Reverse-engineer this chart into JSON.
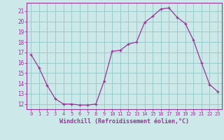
{
  "x": [
    0,
    1,
    2,
    3,
    4,
    5,
    6,
    7,
    8,
    9,
    10,
    11,
    12,
    13,
    14,
    15,
    16,
    17,
    18,
    19,
    20,
    21,
    22,
    23
  ],
  "y": [
    16.8,
    15.5,
    13.8,
    12.5,
    12.0,
    12.0,
    11.9,
    11.9,
    12.0,
    14.2,
    17.1,
    17.2,
    17.8,
    18.0,
    19.9,
    20.5,
    21.2,
    21.3,
    20.4,
    19.8,
    18.2,
    16.0,
    13.9,
    13.2
  ],
  "line_color": "#993399",
  "marker": "+",
  "marker_size": 3,
  "bg_color": "#cce8e8",
  "grid_color": "#99cccc",
  "ylabel_ticks": [
    12,
    13,
    14,
    15,
    16,
    17,
    18,
    19,
    20,
    21
  ],
  "xlabel": "Windchill (Refroidissement éolien,°C)",
  "xlim": [
    -0.5,
    23.5
  ],
  "ylim": [
    11.5,
    21.8
  ],
  "tick_color": "#993399",
  "label_color": "#993399"
}
